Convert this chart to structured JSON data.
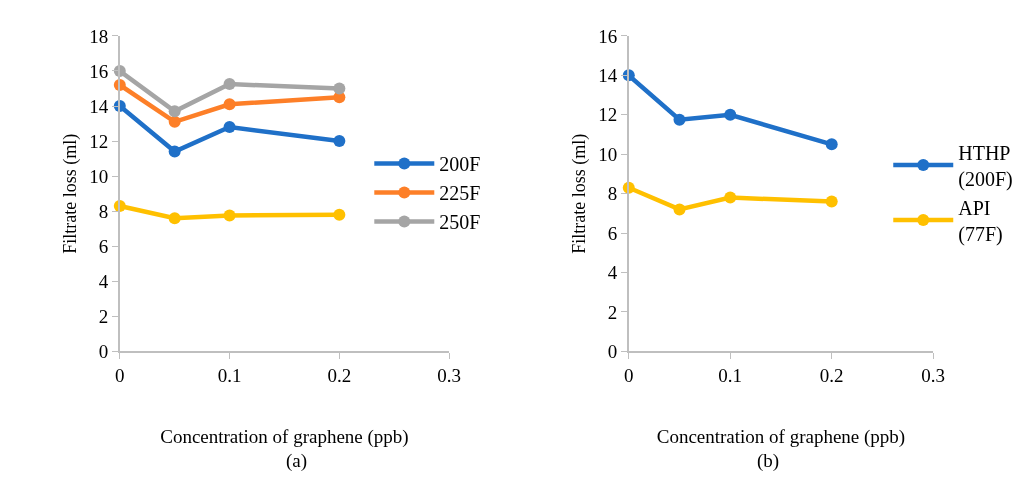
{
  "chart_data": [
    {
      "type": "line",
      "xlabel": "Concentration of graphene (ppb)",
      "ylabel": "Filtrate loss (ml)",
      "annotations": [
        "(a)"
      ],
      "x": [
        0,
        0.05,
        0.1,
        0.2
      ],
      "xlim": [
        0,
        0.3
      ],
      "xticks": [
        0,
        0.1,
        0.2,
        0.3
      ],
      "ylim": [
        0,
        18
      ],
      "yticks": [
        0,
        2,
        4,
        6,
        8,
        10,
        12,
        14,
        16,
        18
      ],
      "grid": false,
      "legend": "right",
      "marker": "circle",
      "line_style": "solid",
      "series": [
        {
          "name": "200F",
          "color": "#1f70c8",
          "values": [
            14.0,
            11.4,
            12.8,
            12.0
          ]
        },
        {
          "name": "225F",
          "color": "#fd7f28",
          "values": [
            15.2,
            13.1,
            14.1,
            14.5
          ]
        },
        {
          "name": "250F",
          "color": "#a5a5a5",
          "values": [
            16.0,
            13.7,
            15.25,
            15.0
          ]
        },
        {
          "color": "#ffc000",
          "values": [
            8.3,
            7.6,
            7.75,
            7.8
          ]
        }
      ]
    },
    {
      "type": "line",
      "xlabel": "Concentration of graphene (ppb)",
      "ylabel": "Filtrate loss (ml)",
      "annotations": [
        "(b)"
      ],
      "x": [
        0,
        0.05,
        0.1,
        0.2
      ],
      "xlim": [
        0,
        0.3
      ],
      "xticks": [
        0,
        0.1,
        0.2,
        0.3
      ],
      "ylim": [
        0,
        16
      ],
      "yticks": [
        0,
        2,
        4,
        6,
        8,
        10,
        12,
        14,
        16
      ],
      "grid": false,
      "legend": "right",
      "marker": "circle",
      "line_style": "solid",
      "series": [
        {
          "name": "HTHP (200F)",
          "color": "#1f70c8",
          "values": [
            14.0,
            11.75,
            12.0,
            10.5
          ]
        },
        {
          "name": "API (77F)",
          "color": "#ffc000",
          "values": [
            8.3,
            7.2,
            7.8,
            7.6
          ]
        }
      ]
    }
  ]
}
